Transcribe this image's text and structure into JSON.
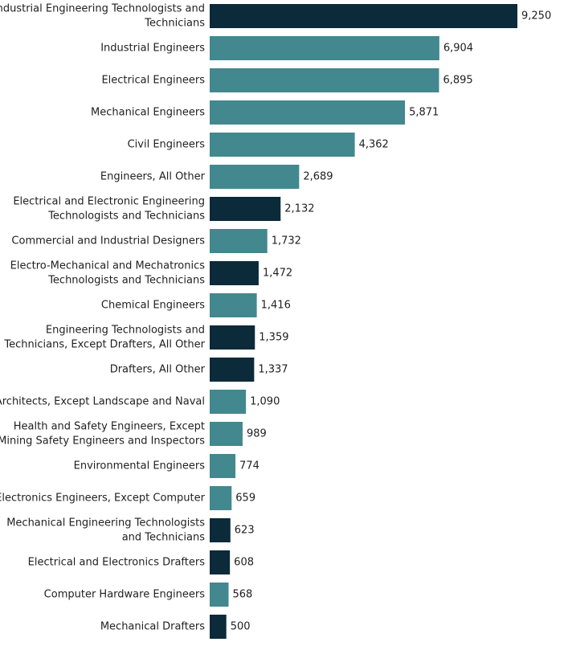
{
  "chart_data": {
    "type": "bar",
    "orientation": "horizontal",
    "categories": [
      "Industrial Engineering Technologists and Technicians",
      "Industrial Engineers",
      "Electrical Engineers",
      "Mechanical Engineers",
      "Civil Engineers",
      "Engineers, All Other",
      "Electrical and Electronic Engineering Technologists and Technicians",
      "Commercial and Industrial Designers",
      "Electro-Mechanical and Mechatronics Technologists and Technicians",
      "Chemical Engineers",
      "Engineering Technologists and Technicians, Except Drafters, All Other",
      "Drafters, All Other",
      "Architects, Except Landscape and Naval",
      "Health and Safety Engineers, Except Mining Safety Engineers and Inspectors",
      "Environmental Engineers",
      "Electronics Engineers, Except Computer",
      "Mechanical Engineering Technologists and Technicians",
      "Electrical and Electronics Drafters",
      "Computer Hardware Engineers",
      "Mechanical Drafters"
    ],
    "values": [
      9250,
      6904,
      6895,
      5871,
      4362,
      2689,
      2132,
      1732,
      1472,
      1416,
      1359,
      1337,
      1090,
      989,
      774,
      659,
      623,
      608,
      568,
      500
    ],
    "value_labels": [
      "9,250",
      "6,904",
      "6,895",
      "5,871",
      "4,362",
      "2,689",
      "2,132",
      "1,732",
      "1,472",
      "1,416",
      "1,359",
      "1,337",
      "1,090",
      "989",
      "774",
      "659",
      "623",
      "608",
      "568",
      "500"
    ],
    "label_lines": [
      [
        "Industrial Engineering Technologists and",
        "Technicians"
      ],
      [
        "Industrial Engineers"
      ],
      [
        "Electrical Engineers"
      ],
      [
        "Mechanical Engineers"
      ],
      [
        "Civil Engineers"
      ],
      [
        "Engineers, All Other"
      ],
      [
        "Electrical and Electronic Engineering",
        "Technologists and Technicians"
      ],
      [
        "Commercial and Industrial Designers"
      ],
      [
        "Electro-Mechanical and Mechatronics",
        "Technologists and Technicians"
      ],
      [
        "Chemical Engineers"
      ],
      [
        "Engineering Technologists and",
        "Technicians, Except Drafters, All Other"
      ],
      [
        "Drafters, All Other"
      ],
      [
        "Architects, Except Landscape and Naval"
      ],
      [
        "Health and Safety Engineers, Except",
        "Mining Safety Engineers and Inspectors"
      ],
      [
        "Environmental Engineers"
      ],
      [
        "Electronics Engineers, Except Computer"
      ],
      [
        "Mechanical Engineering Technologists",
        "and Technicians"
      ],
      [
        "Electrical and Electronics Drafters"
      ],
      [
        "Computer Hardware Engineers"
      ],
      [
        "Mechanical Drafters"
      ]
    ],
    "groups": [
      "dark",
      "teal",
      "teal",
      "teal",
      "teal",
      "teal",
      "dark",
      "teal",
      "dark",
      "teal",
      "dark",
      "dark",
      "teal",
      "teal",
      "teal",
      "teal",
      "dark",
      "dark",
      "teal",
      "dark"
    ],
    "colors": {
      "dark": "#0b2a3a",
      "teal": "#43878f"
    },
    "xlim": [
      0,
      9250
    ],
    "title": "",
    "xlabel": "",
    "ylabel": "",
    "grid": false,
    "legend": "none"
  }
}
